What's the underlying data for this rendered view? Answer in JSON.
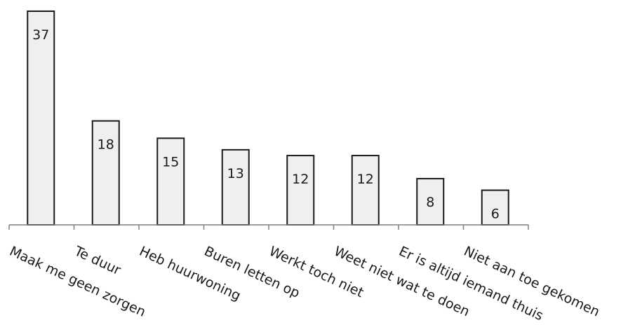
{
  "chart_data": {
    "type": "bar",
    "categories": [
      "Maak me geen zorgen",
      "Te duur",
      "Heb huurwoning",
      "Buren letten op",
      "Werkt toch niet",
      "Weet niet wat te doen",
      "Er is altijd iemand thuis",
      "Niet aan toe gekomen"
    ],
    "values": [
      37,
      18,
      15,
      13,
      12,
      12,
      8,
      6
    ],
    "title": "",
    "xlabel": "",
    "ylabel": "",
    "ylim": [
      0,
      37
    ],
    "grid": false,
    "legend": "none",
    "data_labels": true
  },
  "colors": {
    "bar_fill": "#efefef",
    "bar_stroke": "#1a1a1a",
    "axis": "#7f7f7f"
  }
}
